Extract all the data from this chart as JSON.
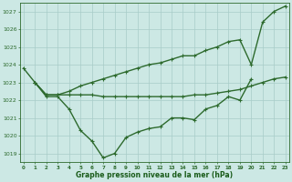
{
  "title": "Graphe pression niveau de la mer (hPa)",
  "xlabel_hours": [
    0,
    1,
    2,
    3,
    4,
    5,
    6,
    7,
    8,
    9,
    10,
    11,
    12,
    13,
    14,
    15,
    16,
    17,
    18,
    19,
    20,
    21,
    22,
    23
  ],
  "ylim": [
    1018.5,
    1027.5
  ],
  "yticks": [
    1019,
    1020,
    1021,
    1022,
    1023,
    1024,
    1025,
    1026,
    1027
  ],
  "line1_dip": {
    "x": [
      0,
      1,
      2,
      3,
      4,
      5,
      6,
      7,
      8,
      9,
      10,
      11,
      12,
      13,
      14,
      15,
      16,
      17,
      18,
      19,
      20
    ],
    "y": [
      1023.8,
      1023.0,
      1022.2,
      1022.2,
      1021.5,
      1020.3,
      1019.7,
      1018.75,
      1019.0,
      1019.9,
      1020.2,
      1020.4,
      1020.5,
      1021.0,
      1021.0,
      1020.9,
      1021.5,
      1021.7,
      1022.2,
      1022.0,
      1023.2
    ],
    "color": "#2d6a2d",
    "linewidth": 1.0,
    "markersize": 2.5
  },
  "line2_flat": {
    "x": [
      1,
      2,
      3,
      4,
      5,
      6,
      7,
      8,
      9,
      10,
      11,
      12,
      13,
      14,
      15,
      16,
      17,
      18,
      19,
      20,
      21,
      22,
      23
    ],
    "y": [
      1023.0,
      1022.3,
      1022.3,
      1022.3,
      1022.3,
      1022.3,
      1022.2,
      1022.2,
      1022.2,
      1022.2,
      1022.2,
      1022.2,
      1022.2,
      1022.2,
      1022.3,
      1022.3,
      1022.4,
      1022.5,
      1022.6,
      1022.8,
      1023.0,
      1023.2,
      1023.3
    ],
    "color": "#2d6a2d",
    "linewidth": 1.0,
    "markersize": 2.5
  },
  "line3_rise": {
    "x": [
      1,
      2,
      3,
      4,
      5,
      6,
      7,
      8,
      9,
      10,
      11,
      12,
      13,
      14,
      15,
      16,
      17,
      18,
      19,
      20,
      21,
      22,
      23
    ],
    "y": [
      1023.0,
      1022.3,
      1022.3,
      1022.5,
      1022.8,
      1023.0,
      1023.2,
      1023.4,
      1023.6,
      1023.8,
      1024.0,
      1024.1,
      1024.3,
      1024.5,
      1024.5,
      1024.8,
      1025.0,
      1025.3,
      1025.4,
      1024.0,
      1026.4,
      1027.0,
      1027.3
    ],
    "color": "#2d6a2d",
    "linewidth": 1.0,
    "markersize": 2.5
  },
  "bg_color": "#cce8e4",
  "grid_color": "#a8ccc8",
  "text_color": "#1a5c1a",
  "axis_color": "#2d6a2d"
}
